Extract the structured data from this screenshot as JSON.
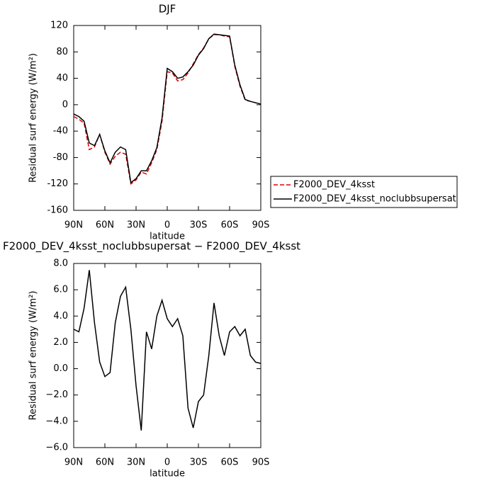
{
  "chart_data": [
    {
      "type": "line",
      "title": "DJF",
      "x_label": "latitude",
      "y_label": "Residual surf energy (W/m²)",
      "x": [
        90,
        85,
        80,
        75,
        70,
        65,
        60,
        55,
        50,
        45,
        40,
        35,
        30,
        25,
        20,
        15,
        10,
        5,
        0,
        -5,
        -10,
        -15,
        -20,
        -25,
        -30,
        -35,
        -40,
        -45,
        -50,
        -55,
        -60,
        -65,
        -70,
        -75,
        -80,
        -85,
        -90
      ],
      "xlim": [
        90,
        -90
      ],
      "xticks": [
        {
          "value": 90,
          "label": "90N"
        },
        {
          "value": 60,
          "label": "60N"
        },
        {
          "value": 30,
          "label": "30N"
        },
        0,
        {
          "value": -30,
          "label": "30S"
        },
        {
          "value": -60,
          "label": "60S"
        },
        {
          "value": -90,
          "label": "90S"
        }
      ],
      "ylim": [
        -160,
        120
      ],
      "yticks": [
        -160,
        -120,
        -80,
        -40,
        0,
        40,
        80,
        120
      ],
      "legend": "outside-right",
      "series": [
        {
          "name": "F2000_DEV_4ksst",
          "color": "#e00000",
          "linestyle": "dashed",
          "values": [
            -18,
            -22,
            -28,
            -68,
            -64,
            -45,
            -72,
            -90,
            -78,
            -72,
            -75,
            -120,
            -114,
            -102,
            -105,
            -88,
            -68,
            -25,
            50,
            48,
            36,
            38,
            48,
            62,
            76,
            86,
            100,
            106,
            106,
            104,
            103,
            58,
            28,
            7,
            5,
            3,
            1
          ]
        },
        {
          "name": "F2000_DEV_4ksst_noclubbsupersat",
          "color": "#000000",
          "linestyle": "solid",
          "values": [
            -14,
            -18,
            -25,
            -58,
            -62,
            -45,
            -70,
            -88,
            -72,
            -64,
            -68,
            -118,
            -112,
            -100,
            -100,
            -85,
            -65,
            -20,
            55,
            50,
            40,
            42,
            50,
            60,
            75,
            85,
            100,
            107,
            106,
            105,
            104,
            60,
            30,
            8,
            5,
            3,
            1
          ]
        }
      ]
    },
    {
      "type": "line",
      "title": "F2000_DEV_4ksst_noclubbsupersat − F2000_DEV_4ksst",
      "x_label": "latitude",
      "y_label": "Residual surf energy (W/m²)",
      "x": [
        90,
        85,
        80,
        75,
        70,
        65,
        60,
        55,
        50,
        45,
        40,
        35,
        30,
        25,
        20,
        15,
        10,
        5,
        0,
        -5,
        -10,
        -15,
        -20,
        -25,
        -30,
        -35,
        -40,
        -45,
        -50,
        -55,
        -60,
        -65,
        -70,
        -75,
        -80,
        -85,
        -90
      ],
      "xlim": [
        90,
        -90
      ],
      "xticks": [
        {
          "value": 90,
          "label": "90N"
        },
        {
          "value": 60,
          "label": "60N"
        },
        {
          "value": 30,
          "label": "30N"
        },
        0,
        {
          "value": -30,
          "label": "30S"
        },
        {
          "value": -60,
          "label": "60S"
        },
        {
          "value": -90,
          "label": "90S"
        }
      ],
      "ylim": [
        -6,
        8
      ],
      "yticks": [
        {
          "value": -6,
          "label": "−6.0"
        },
        {
          "value": -4,
          "label": "−4.0"
        },
        {
          "value": -2,
          "label": "−2.0"
        },
        {
          "value": 0,
          "label": "0.0"
        },
        {
          "value": 2,
          "label": "2.0"
        },
        {
          "value": 4,
          "label": "4.0"
        },
        {
          "value": 6,
          "label": "6.0"
        },
        {
          "value": 8,
          "label": "8.0"
        }
      ],
      "series": [
        {
          "color": "#000000",
          "linestyle": "solid",
          "values": [
            3.0,
            2.8,
            4.6,
            7.5,
            3.5,
            0.5,
            -0.6,
            -0.3,
            3.5,
            5.5,
            6.2,
            3.0,
            -1.3,
            -4.7,
            2.8,
            1.5,
            4.0,
            5.2,
            3.8,
            3.2,
            3.8,
            2.5,
            -3.0,
            -4.5,
            -2.5,
            -2.0,
            1.0,
            5.0,
            2.5,
            1.0,
            2.8,
            3.2,
            2.5,
            3.0,
            1.0,
            0.5,
            0.4
          ]
        }
      ]
    }
  ]
}
